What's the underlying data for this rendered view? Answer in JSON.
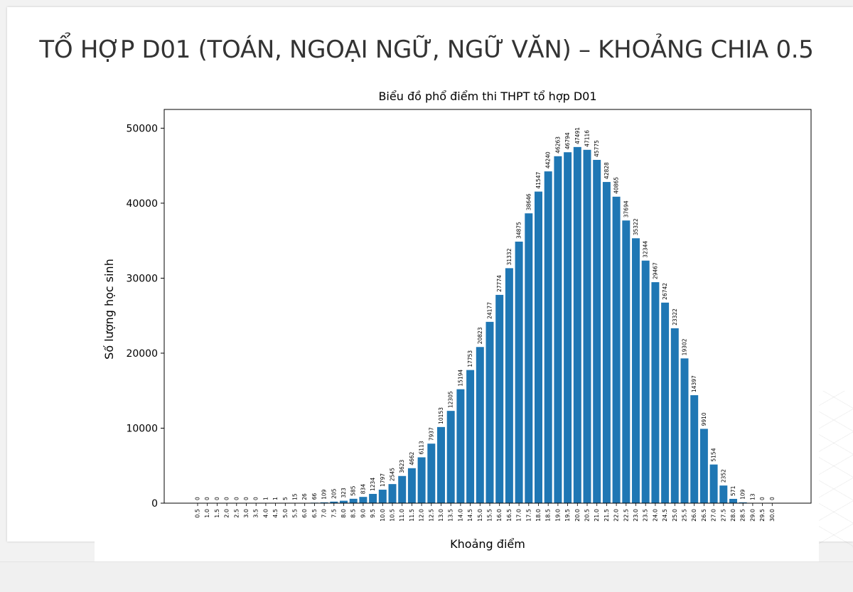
{
  "slide": {
    "title": "TỔ HỢP D01 (TOÁN, NGOẠI NGỮ, NGỮ VĂN) – KHOẢNG CHIA 0.5"
  },
  "colors": {
    "bar": "#1f77b4",
    "slide_background": "#ffffff",
    "title_text": "#333333"
  },
  "chart_data": {
    "type": "bar",
    "title": "Biểu đồ phổ điểm thi THPT tổ hợp D01",
    "xlabel": "Khoảng điểm",
    "ylabel": "Số lượng học sinh",
    "ylim": [
      0,
      52500
    ],
    "yticks": [
      0,
      10000,
      20000,
      30000,
      40000,
      50000
    ],
    "grid": false,
    "categories": [
      "0.5",
      "1.0",
      "1.5",
      "2.0",
      "2.5",
      "3.0",
      "3.5",
      "4.0",
      "4.5",
      "5.0",
      "5.5",
      "6.0",
      "6.5",
      "7.0",
      "7.5",
      "8.0",
      "8.5",
      "9.0",
      "9.5",
      "10.0",
      "10.5",
      "11.0",
      "11.5",
      "12.0",
      "12.5",
      "13.0",
      "13.5",
      "14.0",
      "14.5",
      "15.0",
      "15.5",
      "16.0",
      "16.5",
      "17.0",
      "17.5",
      "18.0",
      "18.5",
      "19.0",
      "19.5",
      "20.0",
      "20.5",
      "21.0",
      "21.5",
      "22.0",
      "22.5",
      "23.0",
      "23.5",
      "24.0",
      "24.5",
      "25.0",
      "25.5",
      "26.0",
      "26.5",
      "27.0",
      "27.5",
      "28.0",
      "28.5",
      "29.0",
      "29.5",
      "30.0"
    ],
    "values": [
      0,
      0,
      0,
      0,
      0,
      0,
      0,
      1,
      1,
      5,
      15,
      26,
      66,
      109,
      205,
      323,
      585,
      834,
      1234,
      1797,
      2545,
      3623,
      4662,
      6113,
      7937,
      10153,
      12305,
      15194,
      17753,
      20823,
      24177,
      27774,
      31332,
      34875,
      38646,
      41547,
      44240,
      46263,
      46794,
      47491,
      47116,
      45775,
      42828,
      40865,
      37694,
      35322,
      32344,
      29467,
      26742,
      23322,
      19302,
      14397,
      9910,
      5154,
      2352,
      571,
      109,
      13,
      0,
      0
    ]
  }
}
